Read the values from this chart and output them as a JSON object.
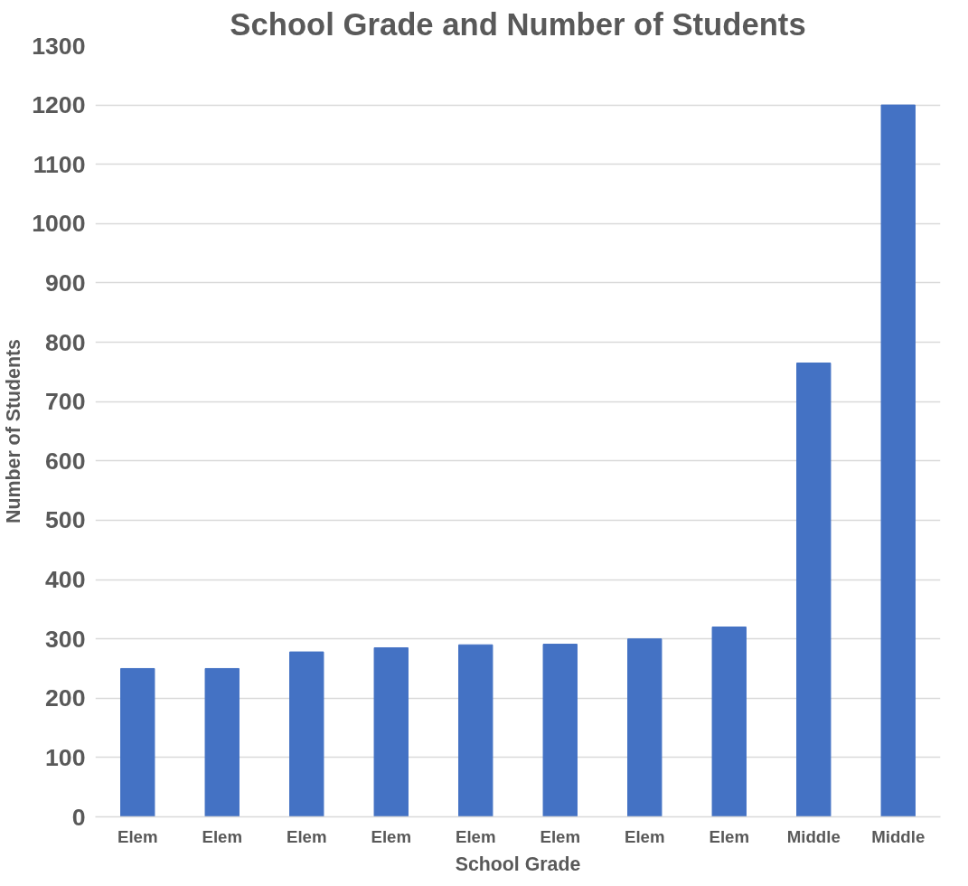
{
  "chart_data": {
    "type": "bar",
    "title": "School Grade and Number of Students",
    "xlabel": "School Grade",
    "ylabel": "Number of Students",
    "categories": [
      "Elem",
      "Elem",
      "Elem",
      "Elem",
      "Elem",
      "Elem",
      "Elem",
      "Elem",
      "Middle",
      "Middle"
    ],
    "values": [
      250,
      250,
      278,
      285,
      290,
      291,
      300,
      320,
      765,
      1200
    ],
    "color": "#4472c4",
    "ylim": [
      0,
      1300
    ],
    "yticks": [
      0,
      100,
      200,
      300,
      400,
      500,
      600,
      700,
      800,
      900,
      1000,
      1100,
      1200,
      1300
    ],
    "grid": "y"
  }
}
